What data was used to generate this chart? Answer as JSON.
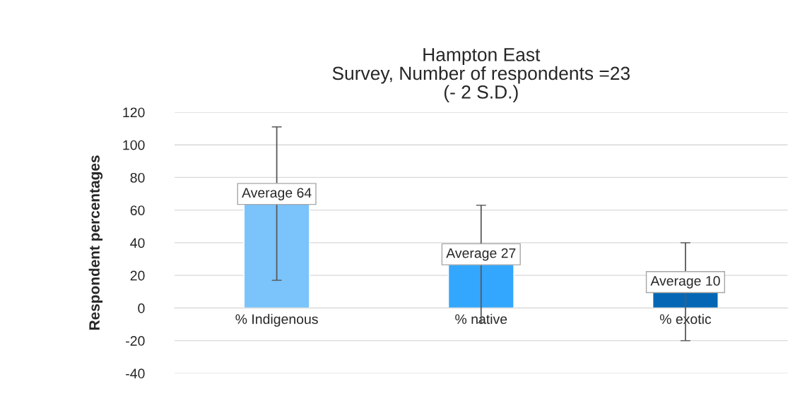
{
  "chart_data": {
    "type": "bar",
    "title": "Hampton East\nSurvey, Number of respondents =23\n(- 2 S.D.)",
    "ylabel": "Respondent percentages",
    "categories": [
      "% Indigenous",
      "% native",
      "% exotic"
    ],
    "values": [
      64,
      27,
      10
    ],
    "colors": [
      "#7ac3fb",
      "#33a7fd",
      "#0566b5"
    ],
    "errors": [
      47,
      36,
      30
    ],
    "value_labels": [
      "Average 64",
      "Average 27",
      "Average 10"
    ],
    "ylim": [
      -40,
      120
    ],
    "yticks": [
      -40,
      -20,
      0,
      20,
      40,
      60,
      80,
      100,
      120
    ],
    "grid": "y"
  }
}
